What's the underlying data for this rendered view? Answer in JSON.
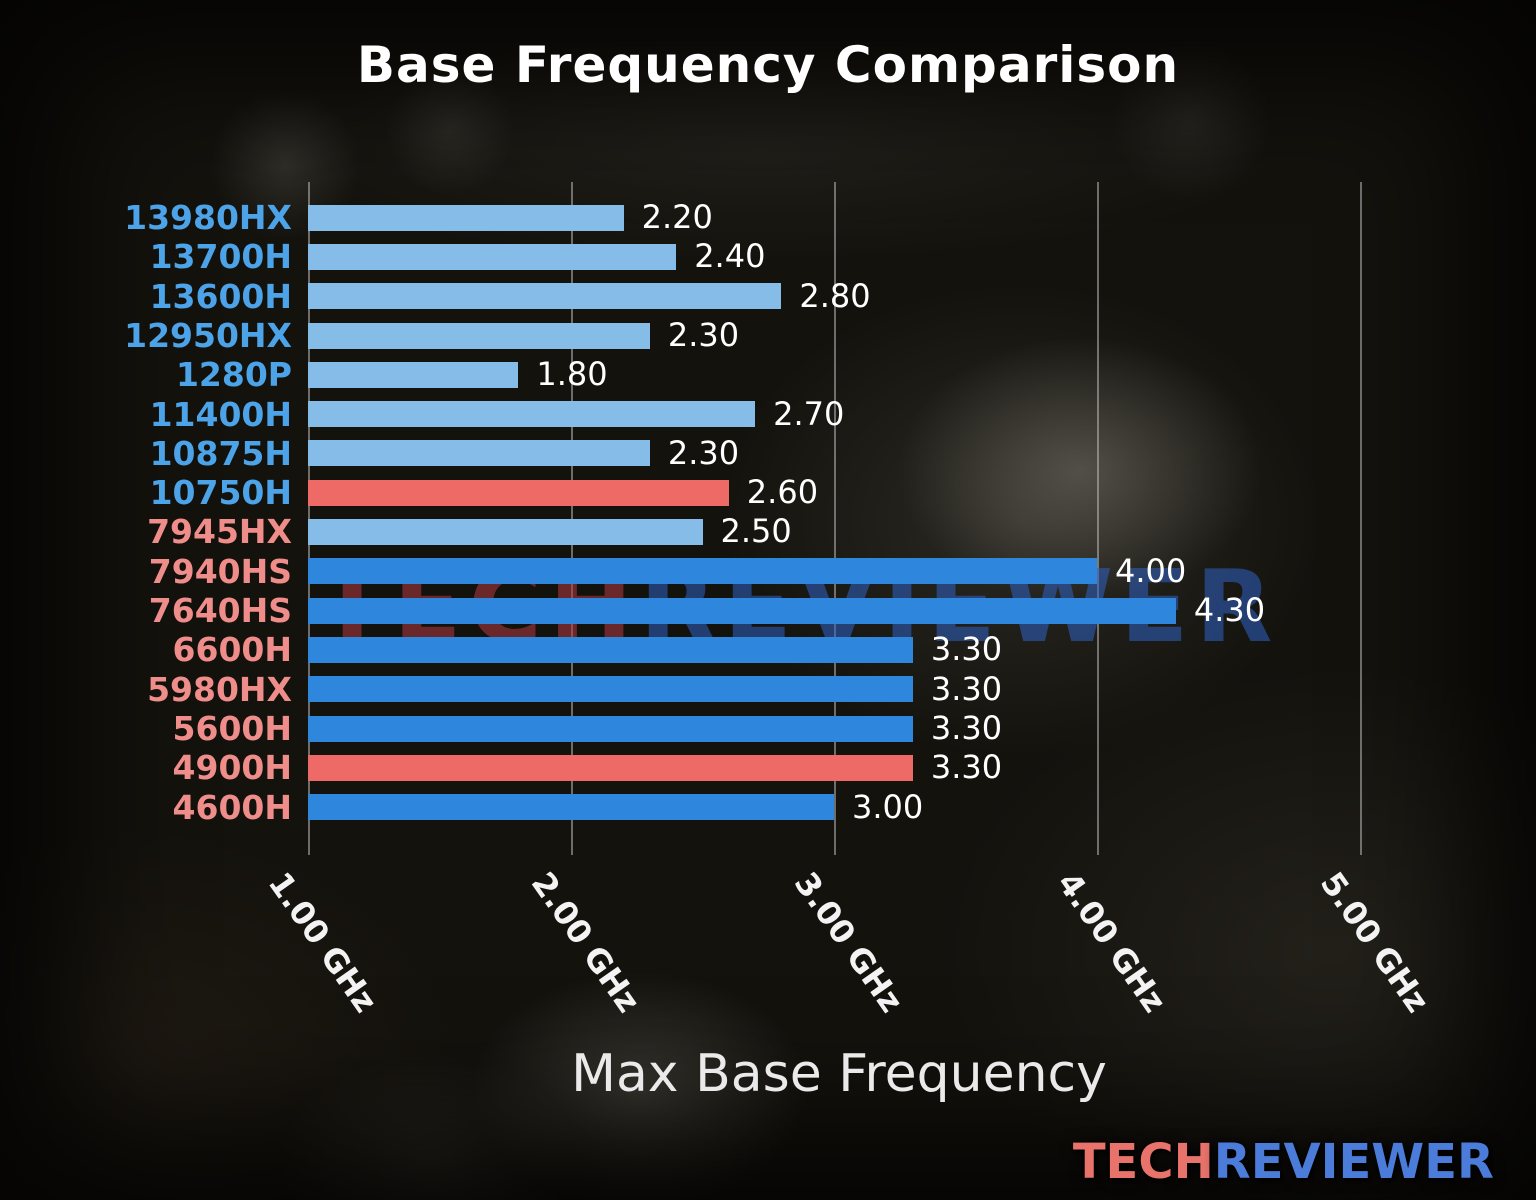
{
  "chart_data": {
    "type": "bar",
    "orientation": "horizontal",
    "title": "Base Frequency Comparison",
    "xlabel": "Max Base Frequency",
    "xlim": [
      1.0,
      5.6
    ],
    "grid": true,
    "x_ticks": [
      {
        "value": 1.0,
        "label": "1.00 GHz"
      },
      {
        "value": 2.0,
        "label": "2.00 GHz"
      },
      {
        "value": 3.0,
        "label": "3.00 GHz"
      },
      {
        "value": 4.0,
        "label": "4.00 GHz"
      },
      {
        "value": 5.0,
        "label": "5.00 GHz"
      }
    ],
    "rows": [
      {
        "label": "13980HX",
        "value": 2.2,
        "display": "2.20",
        "brand": "intel",
        "bar": "light_blue"
      },
      {
        "label": "13700H",
        "value": 2.4,
        "display": "2.40",
        "brand": "intel",
        "bar": "light_blue"
      },
      {
        "label": "13600H",
        "value": 2.8,
        "display": "2.80",
        "brand": "intel",
        "bar": "light_blue"
      },
      {
        "label": "12950HX",
        "value": 2.3,
        "display": "2.30",
        "brand": "intel",
        "bar": "light_blue"
      },
      {
        "label": "1280P",
        "value": 1.8,
        "display": "1.80",
        "brand": "intel",
        "bar": "light_blue"
      },
      {
        "label": "11400H",
        "value": 2.7,
        "display": "2.70",
        "brand": "intel",
        "bar": "light_blue"
      },
      {
        "label": "10875H",
        "value": 2.3,
        "display": "2.30",
        "brand": "intel",
        "bar": "light_blue"
      },
      {
        "label": "10750H",
        "value": 2.6,
        "display": "2.60",
        "brand": "intel",
        "bar": "red"
      },
      {
        "label": "7945HX",
        "value": 2.5,
        "display": "2.50",
        "brand": "amd",
        "bar": "light_blue"
      },
      {
        "label": "7940HS",
        "value": 4.0,
        "display": "4.00",
        "brand": "amd",
        "bar": "dark_blue"
      },
      {
        "label": "7640HS",
        "value": 4.3,
        "display": "4.30",
        "brand": "amd",
        "bar": "dark_blue"
      },
      {
        "label": "6600H",
        "value": 3.3,
        "display": "3.30",
        "brand": "amd",
        "bar": "dark_blue"
      },
      {
        "label": "5980HX",
        "value": 3.3,
        "display": "3.30",
        "brand": "amd",
        "bar": "dark_blue"
      },
      {
        "label": "5600H",
        "value": 3.3,
        "display": "3.30",
        "brand": "amd",
        "bar": "dark_blue"
      },
      {
        "label": "4900H",
        "value": 3.3,
        "display": "3.30",
        "brand": "amd",
        "bar": "red"
      },
      {
        "label": "4600H",
        "value": 3.0,
        "display": "3.00",
        "brand": "amd",
        "bar": "dark_blue"
      }
    ]
  },
  "colors": {
    "bar_light_blue": "#85bce8",
    "bar_dark_blue": "#2e86dd",
    "bar_red": "#ed6a66",
    "label_intel": "#4da3e8",
    "label_amd": "#ef8d8a",
    "value_text": "#ffffff",
    "grid": "#c8c8c8",
    "watermark_tech": "#b23a42",
    "watermark_reviewer": "#2f62c4",
    "logo_tech": "#e8736b",
    "logo_reviewer": "#4b7cd9"
  },
  "watermark": {
    "tech": "TECH",
    "reviewer": "REVIEWER"
  },
  "logo": {
    "tech": "TECH",
    "reviewer": "REVIEWER"
  }
}
